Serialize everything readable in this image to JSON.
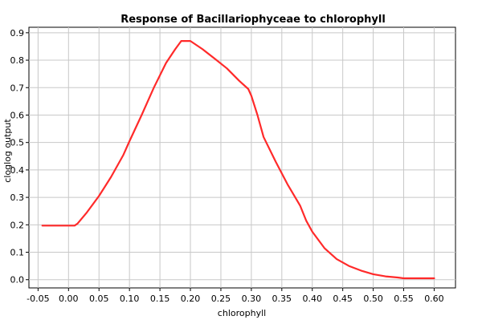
{
  "chart_data": {
    "type": "line",
    "title": "Response of Bacillariophyceae to chlorophyll",
    "xlabel": "chlorophyll",
    "ylabel": "cloglog output",
    "xlim": [
      -0.065,
      0.635
    ],
    "ylim": [
      -0.03,
      0.92
    ],
    "x_ticks": [
      -0.05,
      0.0,
      0.05,
      0.1,
      0.15,
      0.2,
      0.25,
      0.3,
      0.35,
      0.4,
      0.45,
      0.5,
      0.55,
      0.6
    ],
    "x_tick_labels": [
      "-0.05",
      "0.00",
      "0.05",
      "0.10",
      "0.15",
      "0.20",
      "0.25",
      "0.30",
      "0.35",
      "0.40",
      "0.45",
      "0.50",
      "0.55",
      "0.60"
    ],
    "y_ticks": [
      0.0,
      0.1,
      0.2,
      0.3,
      0.4,
      0.5,
      0.6,
      0.7,
      0.8,
      0.9
    ],
    "y_tick_labels": [
      "0.0",
      "0.1",
      "0.2",
      "0.3",
      "0.4",
      "0.5",
      "0.6",
      "0.7",
      "0.8",
      "0.9"
    ],
    "grid": true,
    "series": [
      {
        "color": "#ff2a2a",
        "x": [
          -0.043,
          -0.02,
          0.0,
          0.01,
          0.015,
          0.03,
          0.05,
          0.07,
          0.09,
          0.1,
          0.12,
          0.14,
          0.16,
          0.175,
          0.185,
          0.2,
          0.22,
          0.24,
          0.26,
          0.28,
          0.295,
          0.3,
          0.31,
          0.32,
          0.34,
          0.36,
          0.38,
          0.39,
          0.4,
          0.42,
          0.44,
          0.46,
          0.48,
          0.5,
          0.52,
          0.54,
          0.55,
          0.6
        ],
        "y": [
          0.197,
          0.197,
          0.197,
          0.197,
          0.205,
          0.245,
          0.305,
          0.375,
          0.455,
          0.505,
          0.6,
          0.7,
          0.79,
          0.84,
          0.87,
          0.87,
          0.84,
          0.805,
          0.77,
          0.725,
          0.695,
          0.67,
          0.6,
          0.52,
          0.43,
          0.345,
          0.27,
          0.215,
          0.175,
          0.115,
          0.075,
          0.05,
          0.033,
          0.02,
          0.012,
          0.008,
          0.005,
          0.005
        ]
      }
    ]
  }
}
